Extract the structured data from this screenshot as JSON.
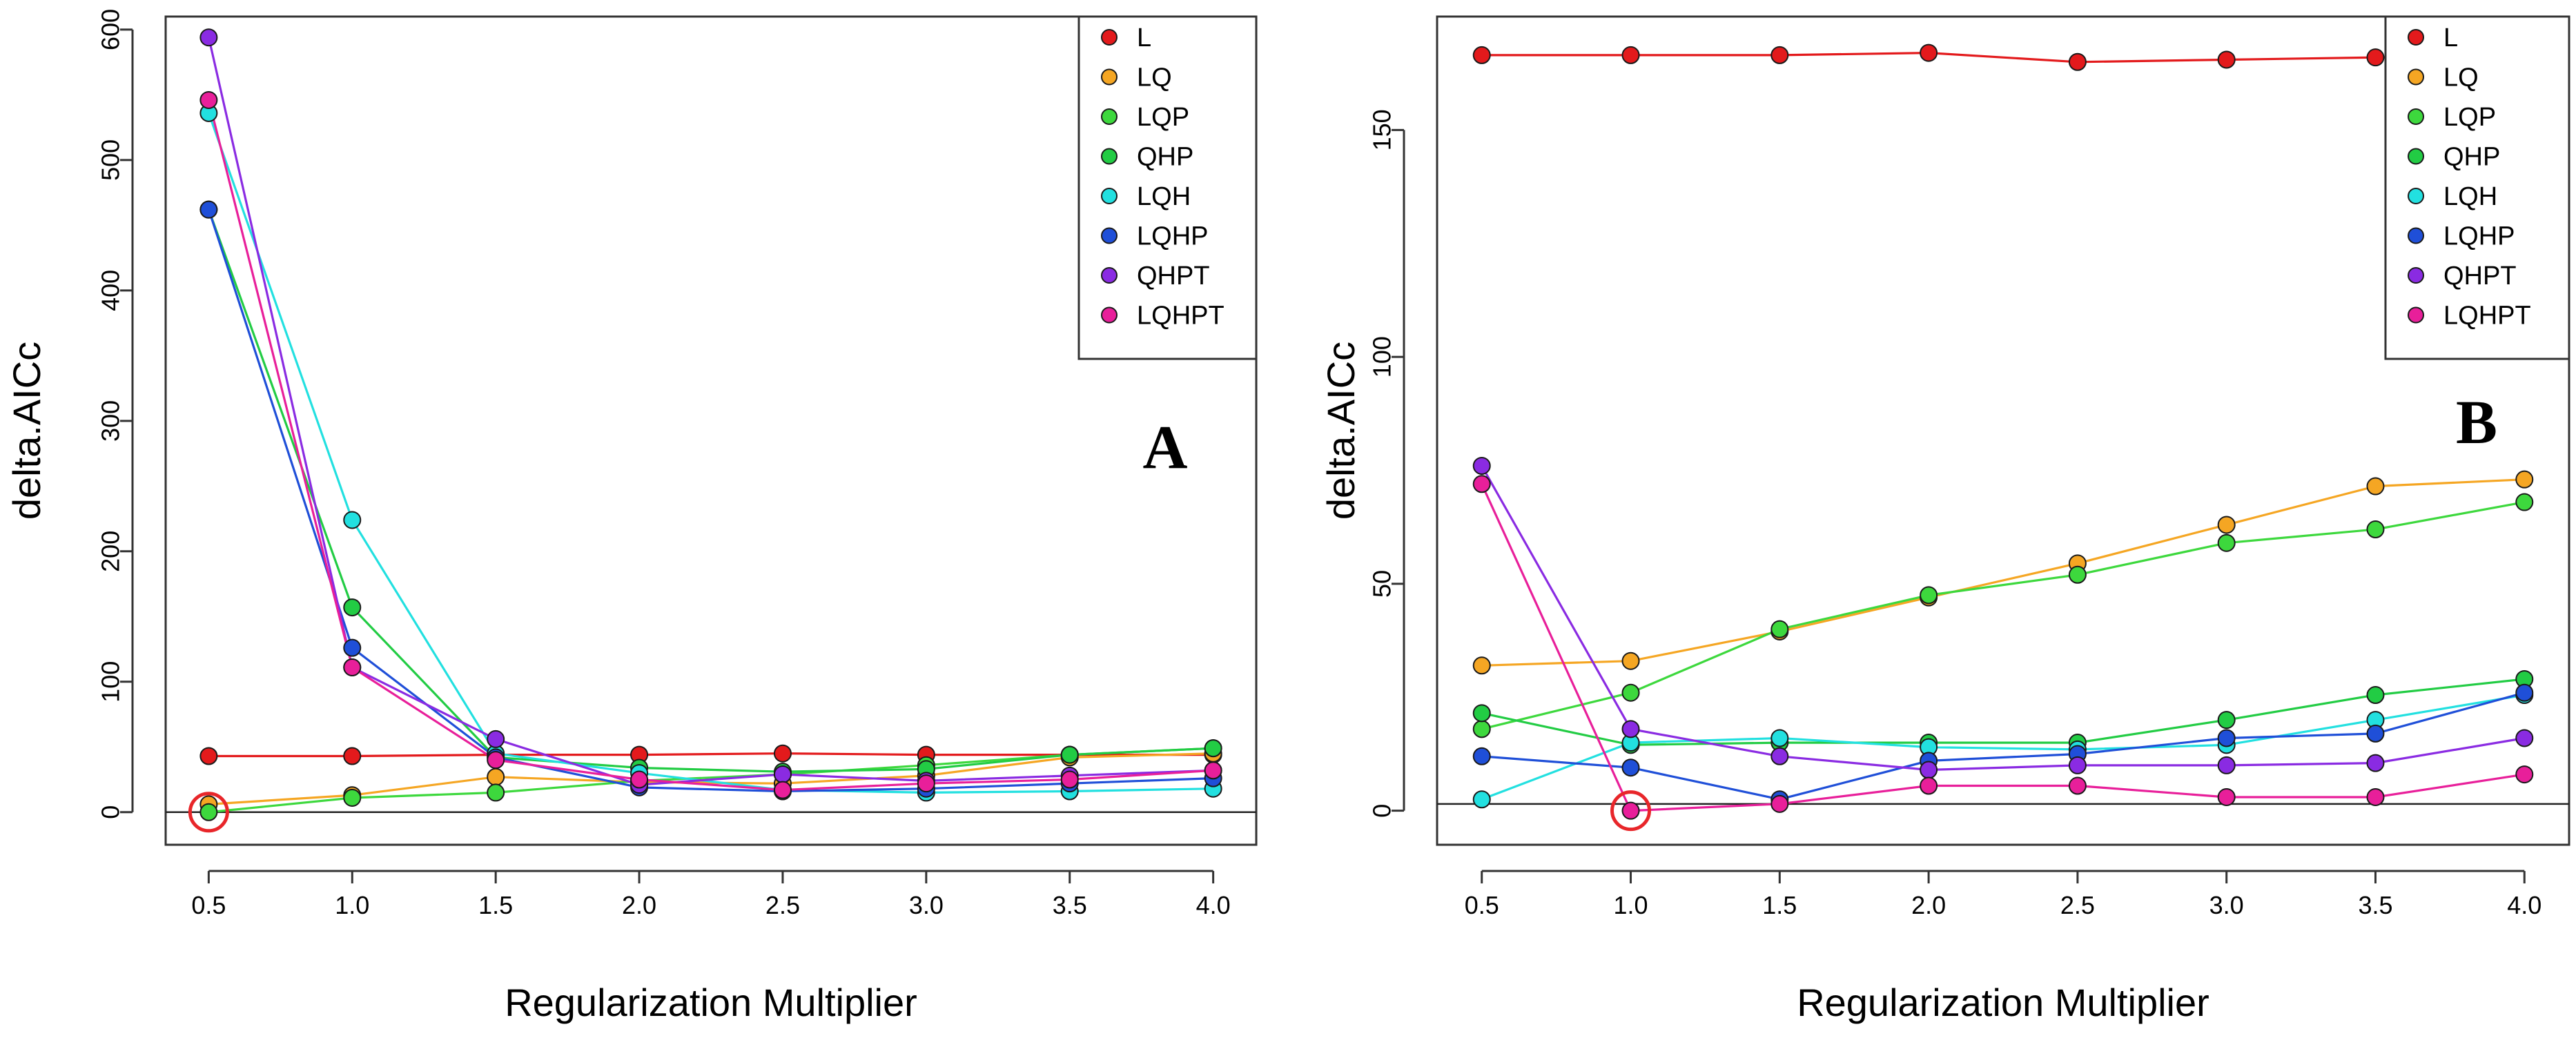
{
  "chart_data": [
    {
      "type": "line",
      "panel_label": "A",
      "xlabel": "Regularization Multiplier",
      "ylabel": "delta.AICc",
      "x": [
        0.5,
        1.0,
        1.5,
        2.0,
        2.5,
        3.0,
        3.5,
        4.0
      ],
      "x_tick_labels": [
        "0.5",
        "1.0",
        "1.5",
        "2.0",
        "2.5",
        "3.0",
        "3.5",
        "4.0"
      ],
      "xlim": [
        0.35,
        4.15
      ],
      "ylim": [
        -25,
        610
      ],
      "y_ticks": [
        0,
        100,
        200,
        300,
        400,
        500,
        600
      ],
      "y_tick_labels": [
        "0",
        "100",
        "200",
        "300",
        "400",
        "500",
        "600"
      ],
      "hline": 0,
      "legend_position": "top-right",
      "highlight": {
        "x": 0.5,
        "y": 0,
        "color": "#e8262a"
      },
      "series": [
        {
          "name": "L",
          "color": "#e31a1c",
          "values": [
            43,
            43,
            44,
            44,
            45,
            44,
            44,
            44
          ]
        },
        {
          "name": "LQ",
          "color": "#f5a623",
          "values": [
            6,
            13,
            27,
            23,
            22,
            28,
            42,
            45
          ]
        },
        {
          "name": "LQP",
          "color": "#3dd83d",
          "values": [
            0,
            11,
            15,
            24,
            29,
            36,
            44,
            49
          ]
        },
        {
          "name": "QHP",
          "color": "#22cc44",
          "values": [
            462,
            157,
            42,
            34,
            31,
            33,
            44,
            49
          ]
        },
        {
          "name": "LQH",
          "color": "#22e0e0",
          "values": [
            536,
            224,
            45,
            30,
            17,
            15,
            16,
            18
          ]
        },
        {
          "name": "LQHP",
          "color": "#1f4fd8",
          "values": [
            462,
            126,
            42,
            19,
            16,
            18,
            22,
            26
          ]
        },
        {
          "name": "QHPT",
          "color": "#8a2be2",
          "values": [
            594,
            111,
            56,
            21,
            29,
            24,
            28,
            32
          ]
        },
        {
          "name": "LQHPT",
          "color": "#e81f9a",
          "values": [
            546,
            111,
            40,
            25,
            17,
            22,
            25,
            32
          ]
        }
      ]
    },
    {
      "type": "line",
      "panel_label": "B",
      "xlabel": "Regularization Multiplier",
      "ylabel": "delta.AICc",
      "x": [
        0.5,
        1.0,
        1.5,
        2.0,
        2.5,
        3.0,
        3.5,
        4.0
      ],
      "x_tick_labels": [
        "0.5",
        "1.0",
        "1.5",
        "2.0",
        "2.5",
        "3.0",
        "3.5",
        "4.0"
      ],
      "xlim": [
        0.35,
        4.15
      ],
      "ylim": [
        -7.5,
        175
      ],
      "y_ticks": [
        0,
        50,
        100,
        150
      ],
      "y_tick_labels": [
        "0",
        "50",
        "100",
        "150"
      ],
      "hline": 1.5,
      "legend_position": "top-right",
      "highlight": {
        "x": 1.0,
        "y": 0,
        "color": "#e8262a"
      },
      "series": [
        {
          "name": "L",
          "color": "#e31a1c",
          "values": [
            166.5,
            166.5,
            166.5,
            167,
            165,
            165.5,
            166,
            166.5
          ]
        },
        {
          "name": "LQ",
          "color": "#f5a623",
          "values": [
            32,
            33,
            39.5,
            47,
            54.5,
            63,
            71.5,
            73
          ]
        },
        {
          "name": "LQP",
          "color": "#3dd83d",
          "values": [
            18,
            26,
            40,
            47.5,
            52,
            59,
            62,
            68
          ]
        },
        {
          "name": "QHP",
          "color": "#22cc44",
          "values": [
            21.5,
            14.5,
            15,
            15,
            15,
            20,
            25.5,
            29
          ]
        },
        {
          "name": "LQH",
          "color": "#22e0e0",
          "values": [
            2.5,
            15,
            16,
            14,
            13.5,
            14.5,
            20,
            25.5
          ]
        },
        {
          "name": "LQHP",
          "color": "#1f4fd8",
          "values": [
            12,
            9.5,
            2.5,
            11,
            12.5,
            16,
            17,
            26
          ]
        },
        {
          "name": "QHPT",
          "color": "#8a2be2",
          "values": [
            76,
            18,
            12,
            9,
            10,
            10,
            10.5,
            16
          ]
        },
        {
          "name": "LQHPT",
          "color": "#e81f9a",
          "values": [
            72,
            0,
            1.5,
            5.5,
            5.5,
            3,
            3,
            8
          ]
        }
      ]
    }
  ]
}
